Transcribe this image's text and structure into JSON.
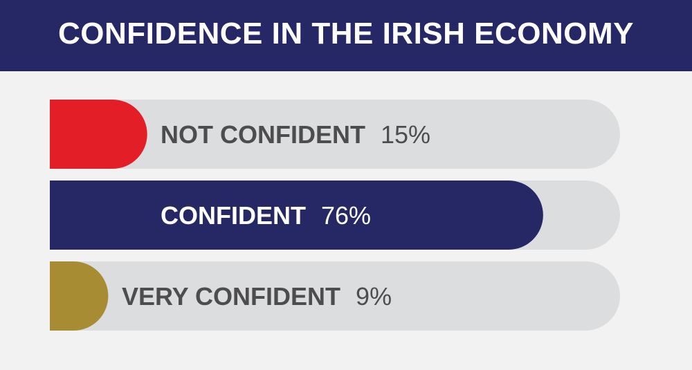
{
  "header": {
    "title": "CONFIDENCE IN THE IRISH ECONOMY"
  },
  "colors": {
    "header_bg": "#262865",
    "page_bg": "#f2f2f2",
    "track": "#dcddde",
    "text_dark": "#4d4d4f",
    "text_light": "#ffffff"
  },
  "chart_data": {
    "type": "bar",
    "orientation": "horizontal",
    "title": "CONFIDENCE IN THE IRISH ECONOMY",
    "categories": [
      "NOT CONFIDENT",
      "CONFIDENT",
      "VERY CONFIDENT"
    ],
    "values": [
      15,
      76,
      9
    ],
    "value_labels": [
      "15%",
      "76%",
      "9%"
    ],
    "colors": [
      "#e31e26",
      "#262865",
      "#a88c33"
    ],
    "xlim": [
      0,
      100
    ],
    "grid": false,
    "legend": "none"
  }
}
